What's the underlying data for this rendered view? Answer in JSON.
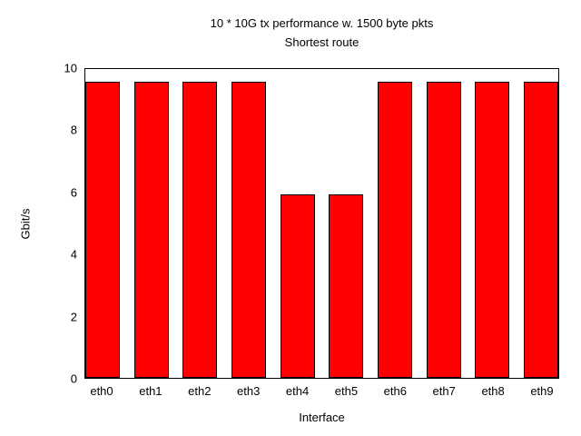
{
  "chart_data": {
    "type": "bar",
    "title": "10 * 10G tx performance w. 1500 byte pkts",
    "subtitle": "Shortest route",
    "categories": [
      "eth0",
      "eth1",
      "eth2",
      "eth3",
      "eth4",
      "eth5",
      "eth6",
      "eth7",
      "eth8",
      "eth9"
    ],
    "values": [
      9.6,
      9.6,
      9.6,
      9.6,
      5.95,
      5.95,
      9.6,
      9.6,
      9.6,
      9.6
    ],
    "xlabel": "Interface",
    "ylabel": "Gbit/s",
    "ylim": [
      0,
      10
    ],
    "yticks": [
      0,
      2,
      4,
      6,
      8,
      10
    ],
    "grid": false,
    "legend": "none",
    "bar_color": "#ff0000",
    "bar_border_color": "#000000",
    "frame_color": "#000000",
    "background_color": "#ffffff",
    "bar_width_ratio": 0.727
  }
}
